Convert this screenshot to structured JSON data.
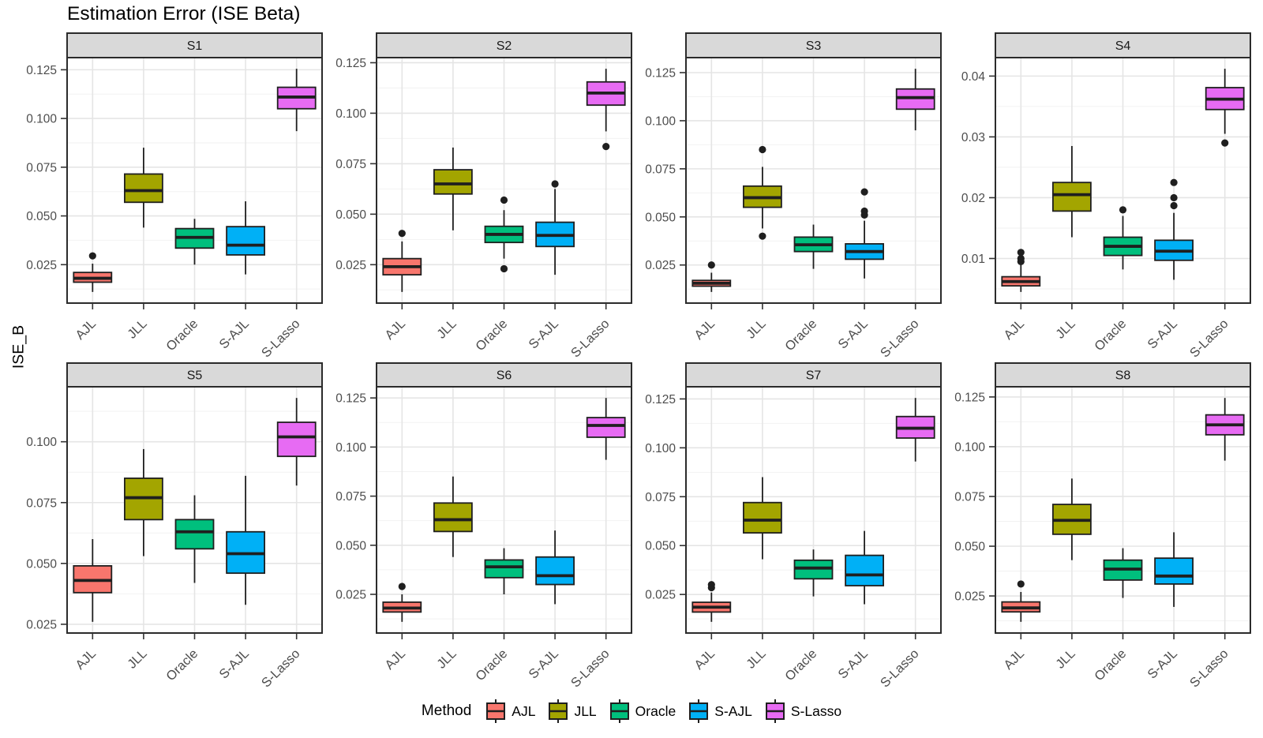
{
  "chart_data": {
    "type": "boxplot",
    "title": "Estimation Error (ISE Beta)",
    "ylabel": "ISE_B",
    "legend_title": "Method",
    "legend_position": "bottom",
    "grid": true,
    "categories": [
      "AJL",
      "JLL",
      "Oracle",
      "S-AJL",
      "S-Lasso"
    ],
    "methods": [
      {
        "label": "AJL",
        "color": "#F8766D"
      },
      {
        "label": "JLL",
        "color": "#A3A500"
      },
      {
        "label": "Oracle",
        "color": "#00BF7D"
      },
      {
        "label": "S-AJL",
        "color": "#00B0F6"
      },
      {
        "label": "S-Lasso",
        "color": "#E76BF3"
      }
    ],
    "facets": [
      {
        "name": "S1",
        "ytick_labels": [
          "0.025",
          "0.050",
          "0.075",
          "0.100",
          "0.125"
        ],
        "ytick_values": [
          0.025,
          0.05,
          0.075,
          0.1,
          0.125
        ],
        "boxes": [
          {
            "method": "AJL",
            "whislo": 0.011,
            "q1": 0.016,
            "med": 0.018,
            "q3": 0.021,
            "whishi": 0.0255,
            "outliers": [
              0.0295
            ]
          },
          {
            "method": "JLL",
            "whislo": 0.044,
            "q1": 0.057,
            "med": 0.063,
            "q3": 0.0715,
            "whishi": 0.085,
            "outliers": []
          },
          {
            "method": "Oracle",
            "whislo": 0.025,
            "q1": 0.0335,
            "med": 0.039,
            "q3": 0.0435,
            "whishi": 0.0485,
            "outliers": []
          },
          {
            "method": "S-AJL",
            "whislo": 0.02,
            "q1": 0.03,
            "med": 0.035,
            "q3": 0.0445,
            "whishi": 0.0575,
            "outliers": []
          },
          {
            "method": "S-Lasso",
            "whislo": 0.0935,
            "q1": 0.105,
            "med": 0.111,
            "q3": 0.116,
            "whishi": 0.1255,
            "outliers": []
          }
        ]
      },
      {
        "name": "S2",
        "ytick_labels": [
          "0.025",
          "0.050",
          "0.075",
          "0.100",
          "0.125"
        ],
        "ytick_values": [
          0.025,
          0.05,
          0.075,
          0.1,
          0.125
        ],
        "boxes": [
          {
            "method": "AJL",
            "whislo": 0.0115,
            "q1": 0.02,
            "med": 0.024,
            "q3": 0.028,
            "whishi": 0.0365,
            "outliers": [
              0.0405
            ]
          },
          {
            "method": "JLL",
            "whislo": 0.042,
            "q1": 0.06,
            "med": 0.065,
            "q3": 0.072,
            "whishi": 0.083,
            "outliers": []
          },
          {
            "method": "Oracle",
            "whislo": 0.028,
            "q1": 0.036,
            "med": 0.04,
            "q3": 0.044,
            "whishi": 0.052,
            "outliers": [
              0.057,
              0.023
            ]
          },
          {
            "method": "S-AJL",
            "whislo": 0.02,
            "q1": 0.034,
            "med": 0.0395,
            "q3": 0.046,
            "whishi": 0.0625,
            "outliers": [
              0.065
            ]
          },
          {
            "method": "S-Lasso",
            "whislo": 0.091,
            "q1": 0.104,
            "med": 0.11,
            "q3": 0.1155,
            "whishi": 0.122,
            "outliers": [
              0.0835
            ]
          }
        ]
      },
      {
        "name": "S3",
        "ytick_labels": [
          "0.025",
          "0.050",
          "0.075",
          "0.100",
          "0.125"
        ],
        "ytick_values": [
          0.025,
          0.05,
          0.075,
          0.1,
          0.125
        ],
        "boxes": [
          {
            "method": "AJL",
            "whislo": 0.011,
            "q1": 0.014,
            "med": 0.0155,
            "q3": 0.017,
            "whishi": 0.021,
            "outliers": [
              0.025
            ]
          },
          {
            "method": "JLL",
            "whislo": 0.044,
            "q1": 0.055,
            "med": 0.06,
            "q3": 0.066,
            "whishi": 0.076,
            "outliers": [
              0.085,
              0.04
            ]
          },
          {
            "method": "Oracle",
            "whislo": 0.023,
            "q1": 0.032,
            "med": 0.0355,
            "q3": 0.0395,
            "whishi": 0.046,
            "outliers": []
          },
          {
            "method": "S-AJL",
            "whislo": 0.018,
            "q1": 0.028,
            "med": 0.032,
            "q3": 0.036,
            "whishi": 0.048,
            "outliers": [
              0.051,
              0.053,
              0.063
            ]
          },
          {
            "method": "S-Lasso",
            "whislo": 0.095,
            "q1": 0.106,
            "med": 0.112,
            "q3": 0.1165,
            "whishi": 0.127,
            "outliers": []
          }
        ]
      },
      {
        "name": "S4",
        "ytick_labels": [
          "0.01",
          "0.02",
          "0.03",
          "0.04"
        ],
        "ytick_values": [
          0.01,
          0.02,
          0.03,
          0.04
        ],
        "boxes": [
          {
            "method": "AJL",
            "whislo": 0.0045,
            "q1": 0.0055,
            "med": 0.0062,
            "q3": 0.007,
            "whishi": 0.009,
            "outliers": [
              0.0095,
              0.01,
              0.011
            ]
          },
          {
            "method": "JLL",
            "whislo": 0.0135,
            "q1": 0.0178,
            "med": 0.0205,
            "q3": 0.0225,
            "whishi": 0.0285,
            "outliers": []
          },
          {
            "method": "Oracle",
            "whislo": 0.0082,
            "q1": 0.0105,
            "med": 0.012,
            "q3": 0.0135,
            "whishi": 0.017,
            "outliers": [
              0.018
            ]
          },
          {
            "method": "S-AJL",
            "whislo": 0.0065,
            "q1": 0.0097,
            "med": 0.0112,
            "q3": 0.013,
            "whishi": 0.0175,
            "outliers": [
              0.0187,
              0.02,
              0.0225
            ]
          },
          {
            "method": "S-Lasso",
            "whislo": 0.0305,
            "q1": 0.0345,
            "med": 0.0362,
            "q3": 0.0381,
            "whishi": 0.0412,
            "outliers": [
              0.029
            ]
          }
        ]
      },
      {
        "name": "S5",
        "ytick_labels": [
          "0.025",
          "0.050",
          "0.075",
          "0.100"
        ],
        "ytick_values": [
          0.025,
          0.05,
          0.075,
          0.1
        ],
        "boxes": [
          {
            "method": "AJL",
            "whislo": 0.026,
            "q1": 0.038,
            "med": 0.043,
            "q3": 0.049,
            "whishi": 0.06,
            "outliers": []
          },
          {
            "method": "JLL",
            "whislo": 0.053,
            "q1": 0.068,
            "med": 0.077,
            "q3": 0.085,
            "whishi": 0.097,
            "outliers": []
          },
          {
            "method": "Oracle",
            "whislo": 0.042,
            "q1": 0.056,
            "med": 0.063,
            "q3": 0.068,
            "whishi": 0.078,
            "outliers": []
          },
          {
            "method": "S-AJL",
            "whislo": 0.033,
            "q1": 0.046,
            "med": 0.054,
            "q3": 0.063,
            "whishi": 0.086,
            "outliers": []
          },
          {
            "method": "S-Lasso",
            "whislo": 0.082,
            "q1": 0.094,
            "med": 0.102,
            "q3": 0.108,
            "whishi": 0.118,
            "outliers": []
          }
        ]
      },
      {
        "name": "S6",
        "ytick_labels": [
          "0.025",
          "0.050",
          "0.075",
          "0.100",
          "0.125"
        ],
        "ytick_values": [
          0.025,
          0.05,
          0.075,
          0.1,
          0.125
        ],
        "boxes": [
          {
            "method": "AJL",
            "whislo": 0.011,
            "q1": 0.016,
            "med": 0.018,
            "q3": 0.021,
            "whishi": 0.025,
            "outliers": [
              0.029
            ]
          },
          {
            "method": "JLL",
            "whislo": 0.044,
            "q1": 0.057,
            "med": 0.063,
            "q3": 0.0715,
            "whishi": 0.085,
            "outliers": []
          },
          {
            "method": "Oracle",
            "whislo": 0.025,
            "q1": 0.0335,
            "med": 0.039,
            "q3": 0.0425,
            "whishi": 0.0485,
            "outliers": []
          },
          {
            "method": "S-AJL",
            "whislo": 0.02,
            "q1": 0.03,
            "med": 0.0345,
            "q3": 0.044,
            "whishi": 0.0575,
            "outliers": []
          },
          {
            "method": "S-Lasso",
            "whislo": 0.0935,
            "q1": 0.105,
            "med": 0.111,
            "q3": 0.115,
            "whishi": 0.125,
            "outliers": []
          }
        ]
      },
      {
        "name": "S7",
        "ytick_labels": [
          "0.025",
          "0.050",
          "0.075",
          "0.100",
          "0.125"
        ],
        "ytick_values": [
          0.025,
          0.05,
          0.075,
          0.1,
          0.125
        ],
        "boxes": [
          {
            "method": "AJL",
            "whislo": 0.011,
            "q1": 0.016,
            "med": 0.0185,
            "q3": 0.021,
            "whishi": 0.026,
            "outliers": [
              0.0285,
              0.03
            ]
          },
          {
            "method": "JLL",
            "whislo": 0.043,
            "q1": 0.0565,
            "med": 0.063,
            "q3": 0.072,
            "whishi": 0.085,
            "outliers": []
          },
          {
            "method": "Oracle",
            "whislo": 0.024,
            "q1": 0.033,
            "med": 0.0385,
            "q3": 0.0425,
            "whishi": 0.048,
            "outliers": []
          },
          {
            "method": "S-AJL",
            "whislo": 0.02,
            "q1": 0.0295,
            "med": 0.035,
            "q3": 0.045,
            "whishi": 0.0575,
            "outliers": []
          },
          {
            "method": "S-Lasso",
            "whislo": 0.093,
            "q1": 0.105,
            "med": 0.11,
            "q3": 0.116,
            "whishi": 0.1255,
            "outliers": []
          }
        ]
      },
      {
        "name": "S8",
        "ytick_labels": [
          "0.025",
          "0.050",
          "0.075",
          "0.100",
          "0.125"
        ],
        "ytick_values": [
          0.025,
          0.05,
          0.075,
          0.1,
          0.125
        ],
        "boxes": [
          {
            "method": "AJL",
            "whislo": 0.012,
            "q1": 0.017,
            "med": 0.019,
            "q3": 0.022,
            "whishi": 0.027,
            "outliers": [
              0.031
            ]
          },
          {
            "method": "JLL",
            "whislo": 0.043,
            "q1": 0.056,
            "med": 0.063,
            "q3": 0.071,
            "whishi": 0.084,
            "outliers": []
          },
          {
            "method": "Oracle",
            "whislo": 0.024,
            "q1": 0.033,
            "med": 0.0385,
            "q3": 0.043,
            "whishi": 0.049,
            "outliers": []
          },
          {
            "method": "S-AJL",
            "whislo": 0.0195,
            "q1": 0.031,
            "med": 0.035,
            "q3": 0.044,
            "whishi": 0.057,
            "outliers": []
          },
          {
            "method": "S-Lasso",
            "whislo": 0.093,
            "q1": 0.106,
            "med": 0.111,
            "q3": 0.116,
            "whishi": 0.1245,
            "outliers": []
          }
        ]
      }
    ]
  }
}
